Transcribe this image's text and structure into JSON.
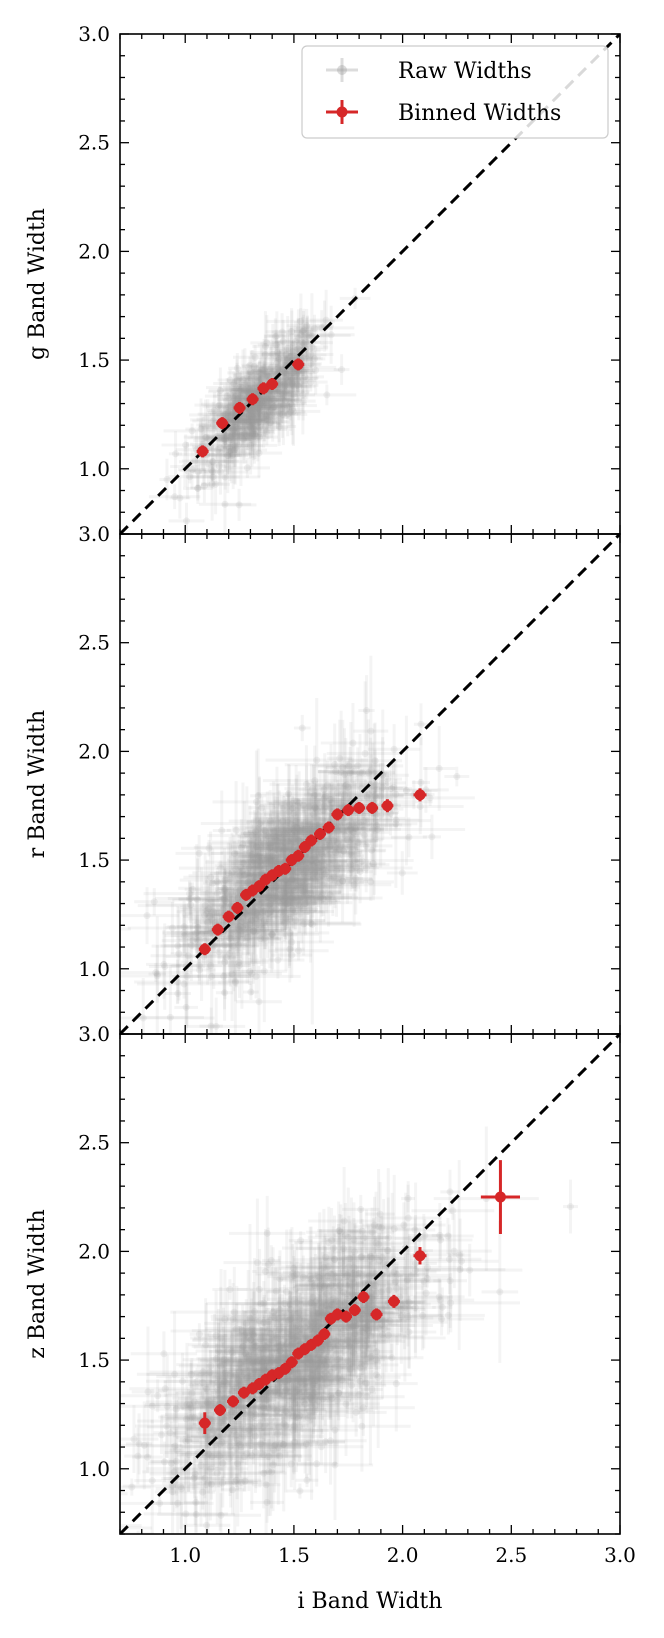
{
  "legend": {
    "raw_label": "Raw Widths",
    "binned_label": "Binned Widths"
  },
  "xlabel": "i Band Width",
  "colors": {
    "raw": "#9a9a9a",
    "binned": "#d62728",
    "reference": "#000000"
  },
  "chart_data": [
    {
      "type": "scatter",
      "panel": "g",
      "ylabel": "g Band Width",
      "xlim": [
        0.7,
        3.0
      ],
      "ylim": [
        0.7,
        3.0
      ],
      "x_ticks": [
        1.0,
        1.5,
        2.0,
        2.5,
        3.0
      ],
      "y_ticks": [
        1.0,
        1.5,
        2.0,
        2.5,
        3.0
      ],
      "reference_line": "y = x",
      "raw_cloud": {
        "x_center": 1.33,
        "y_center": 1.3,
        "spread": 0.13,
        "slope": 0.9,
        "count": 450
      },
      "series": [
        {
          "name": "Binned Widths",
          "x": [
            1.08,
            1.17,
            1.25,
            1.31,
            1.36,
            1.4,
            1.52
          ],
          "y": [
            1.08,
            1.21,
            1.28,
            1.32,
            1.37,
            1.39,
            1.48
          ],
          "xerr": [
            0.01,
            0.01,
            0.01,
            0.01,
            0.01,
            0.01,
            0.01
          ],
          "yerr": [
            0.01,
            0.01,
            0.01,
            0.01,
            0.01,
            0.01,
            0.01
          ]
        }
      ]
    },
    {
      "type": "scatter",
      "panel": "r",
      "ylabel": "r Band Width",
      "xlim": [
        0.7,
        3.0
      ],
      "ylim": [
        0.7,
        3.0
      ],
      "x_ticks": [
        1.0,
        1.5,
        2.0,
        2.5,
        3.0
      ],
      "y_ticks": [
        1.0,
        1.5,
        2.0,
        2.5,
        3.0
      ],
      "reference_line": "y = x",
      "raw_cloud": {
        "x_center": 1.45,
        "y_center": 1.45,
        "spread": 0.22,
        "slope": 0.75,
        "count": 750
      },
      "series": [
        {
          "name": "Binned Widths",
          "x": [
            1.09,
            1.15,
            1.2,
            1.24,
            1.28,
            1.31,
            1.34,
            1.37,
            1.4,
            1.43,
            1.46,
            1.49,
            1.52,
            1.55,
            1.58,
            1.62,
            1.66,
            1.7,
            1.75,
            1.8,
            1.86,
            1.93,
            2.08
          ],
          "y": [
            1.09,
            1.18,
            1.24,
            1.28,
            1.34,
            1.36,
            1.38,
            1.41,
            1.43,
            1.45,
            1.46,
            1.5,
            1.52,
            1.56,
            1.59,
            1.62,
            1.65,
            1.71,
            1.73,
            1.74,
            1.74,
            1.75,
            1.8
          ],
          "xerr": [
            0.01,
            0.01,
            0.01,
            0.01,
            0.01,
            0.01,
            0.01,
            0.01,
            0.01,
            0.01,
            0.01,
            0.01,
            0.01,
            0.01,
            0.01,
            0.01,
            0.01,
            0.01,
            0.01,
            0.01,
            0.01,
            0.02,
            0.03
          ],
          "yerr": [
            0.01,
            0.01,
            0.01,
            0.01,
            0.01,
            0.01,
            0.01,
            0.01,
            0.01,
            0.01,
            0.01,
            0.01,
            0.01,
            0.01,
            0.01,
            0.01,
            0.01,
            0.01,
            0.01,
            0.01,
            0.01,
            0.03,
            0.03
          ]
        }
      ]
    },
    {
      "type": "scatter",
      "panel": "z",
      "ylabel": "z Band Width",
      "xlim": [
        0.7,
        3.0
      ],
      "ylim": [
        0.7,
        3.0
      ],
      "x_ticks": [
        1.0,
        1.5,
        2.0,
        2.5,
        3.0
      ],
      "y_ticks": [
        1.0,
        1.5,
        2.0,
        2.5,
        3.0
      ],
      "reference_line": "y = x",
      "raw_cloud": {
        "x_center": 1.5,
        "y_center": 1.5,
        "spread": 0.27,
        "slope": 0.7,
        "count": 900
      },
      "series": [
        {
          "name": "Binned Widths",
          "x": [
            1.09,
            1.16,
            1.22,
            1.27,
            1.31,
            1.34,
            1.37,
            1.4,
            1.43,
            1.46,
            1.49,
            1.52,
            1.55,
            1.58,
            1.61,
            1.64,
            1.67,
            1.7,
            1.74,
            1.78,
            1.82,
            1.88,
            1.96,
            2.08,
            2.45
          ],
          "y": [
            1.21,
            1.27,
            1.31,
            1.35,
            1.37,
            1.39,
            1.41,
            1.43,
            1.44,
            1.46,
            1.49,
            1.53,
            1.55,
            1.57,
            1.59,
            1.62,
            1.69,
            1.71,
            1.7,
            1.73,
            1.79,
            1.71,
            1.77,
            1.98,
            2.25
          ],
          "xerr": [
            0.01,
            0.01,
            0.01,
            0.01,
            0.01,
            0.01,
            0.01,
            0.01,
            0.01,
            0.01,
            0.01,
            0.01,
            0.01,
            0.01,
            0.01,
            0.01,
            0.01,
            0.01,
            0.01,
            0.01,
            0.01,
            0.02,
            0.02,
            0.03,
            0.09
          ],
          "yerr": [
            0.05,
            0.02,
            0.02,
            0.01,
            0.01,
            0.01,
            0.01,
            0.01,
            0.01,
            0.01,
            0.01,
            0.01,
            0.01,
            0.01,
            0.01,
            0.01,
            0.01,
            0.01,
            0.02,
            0.02,
            0.02,
            0.02,
            0.03,
            0.04,
            0.17
          ]
        }
      ]
    }
  ]
}
